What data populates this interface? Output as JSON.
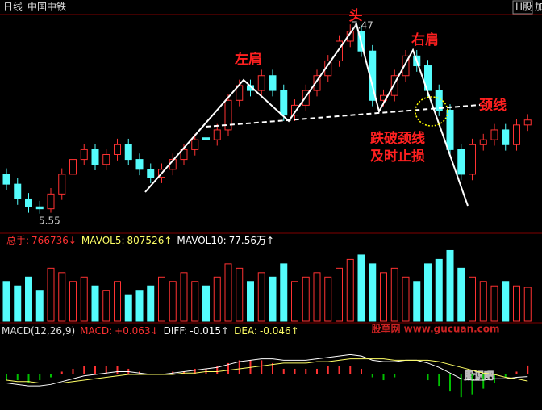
{
  "chart_data": [
    {
      "type": "candlestick",
      "period": "日线",
      "title": "中国中铁",
      "badges": [
        "H股",
        "加"
      ],
      "up_color": "#ff3232",
      "down_color": "#54fcfc",
      "open": [
        5.95,
        5.85,
        5.7,
        5.62,
        5.6,
        5.75,
        5.95,
        6.1,
        6.2,
        6.05,
        6.15,
        6.25,
        6.1,
        6.0,
        5.92,
        6.0,
        6.1,
        6.2,
        6.32,
        6.3,
        6.4,
        6.7,
        6.85,
        6.8,
        6.95,
        6.8,
        6.55,
        6.65,
        6.8,
        6.95,
        7.1,
        7.3,
        7.4,
        7.2,
        6.7,
        6.75,
        6.95,
        7.15,
        7.05,
        6.8,
        6.6,
        6.2,
        5.95,
        6.25,
        6.3,
        6.4,
        6.25,
        6.45
      ],
      "high": [
        6.01,
        5.91,
        5.76,
        5.68,
        5.81,
        6.01,
        6.16,
        6.26,
        6.26,
        6.21,
        6.31,
        6.31,
        6.16,
        6.06,
        6.06,
        6.16,
        6.26,
        6.36,
        6.38,
        6.46,
        6.76,
        6.91,
        6.91,
        7.01,
        7.01,
        6.86,
        6.71,
        6.86,
        7.01,
        7.16,
        7.36,
        7.47,
        7.46,
        7.26,
        6.81,
        7.01,
        7.21,
        7.21,
        7.11,
        6.86,
        6.66,
        6.26,
        6.31,
        6.36,
        6.46,
        6.46,
        6.51,
        6.56
      ],
      "low": [
        5.79,
        5.64,
        5.56,
        5.55,
        5.56,
        5.69,
        5.89,
        6.04,
        5.99,
        5.99,
        6.09,
        6.04,
        5.94,
        5.86,
        5.86,
        5.94,
        6.04,
        6.14,
        6.24,
        6.24,
        6.34,
        6.64,
        6.74,
        6.74,
        6.74,
        6.49,
        6.49,
        6.59,
        6.74,
        6.89,
        7.04,
        7.24,
        7.14,
        6.64,
        6.64,
        6.69,
        6.89,
        6.99,
        6.74,
        6.54,
        6.14,
        5.89,
        5.89,
        6.19,
        6.24,
        6.19,
        6.19,
        6.39
      ],
      "close": [
        5.85,
        5.7,
        5.62,
        5.6,
        5.75,
        5.95,
        6.1,
        6.2,
        6.05,
        6.15,
        6.25,
        6.1,
        6.0,
        5.92,
        6.0,
        6.1,
        6.2,
        6.3,
        6.3,
        6.4,
        6.7,
        6.85,
        6.8,
        6.95,
        6.8,
        6.55,
        6.65,
        6.8,
        6.95,
        7.1,
        7.3,
        7.4,
        7.2,
        6.7,
        6.75,
        6.95,
        7.15,
        7.05,
        6.8,
        6.6,
        6.2,
        5.95,
        6.25,
        6.3,
        6.4,
        6.25,
        6.45,
        6.5
      ],
      "ylim": [
        5.36,
        7.57
      ],
      "high_label": 7.47,
      "low_label": 5.55,
      "annotations": [
        "头",
        "左肩",
        "右肩",
        "颈线",
        "跌破颈线",
        "及时止损"
      ]
    },
    {
      "type": "bar",
      "legend": [
        {
          "name": "总手:",
          "value": 766736,
          "arrow": "↓",
          "color": "#ff3232"
        },
        {
          "name": "MAVOL5:",
          "value": 807526,
          "arrow": "↑",
          "color": "#ffff66"
        },
        {
          "name": "MAVOL10:",
          "value": 775600,
          "value_label": "77.56万",
          "arrow": "↑",
          "color": "#ffffff"
        }
      ],
      "values": [
        900000,
        800000,
        1000000,
        700000,
        1200000,
        1100000,
        900000,
        1000000,
        800000,
        700000,
        900000,
        600000,
        700000,
        800000,
        1000000,
        900000,
        1100000,
        900000,
        800000,
        1000000,
        1300000,
        1200000,
        900000,
        1100000,
        1000000,
        1300000,
        900000,
        1000000,
        1100000,
        1000000,
        1200000,
        1400000,
        1500000,
        1300000,
        1100000,
        1200000,
        1000000,
        900000,
        1300000,
        1400000,
        1600000,
        1200000,
        1000000,
        900000,
        800000,
        900000,
        800000,
        766736
      ],
      "ylim": [
        0,
        1700000
      ]
    },
    {
      "type": "macd",
      "title": "MACD(12,26,9)",
      "legend": [
        {
          "name": "MACD:",
          "value": 0.063,
          "value_label": "+0.063",
          "arrow": "↓",
          "color": "#ff3232"
        },
        {
          "name": "DIFF:",
          "value": -0.015,
          "arrow": "↑",
          "color": "#ffffff"
        },
        {
          "name": "DEA:",
          "value": -0.046,
          "arrow": "↑",
          "color": "#ffff66"
        }
      ],
      "values": [
        -0.04,
        -0.04,
        -0.06,
        -0.04,
        -0.02,
        0.02,
        0.04,
        0.06,
        0.06,
        0.06,
        0.06,
        0.04,
        0.02,
        0,
        0,
        0.02,
        0.02,
        0.04,
        0.04,
        0.06,
        0.08,
        0.1,
        0.1,
        0.1,
        0.08,
        0.04,
        0.04,
        0.04,
        0.04,
        0.06,
        0.06,
        0.06,
        0.04,
        -0.02,
        -0.04,
        -0.02,
        0,
        0,
        -0.04,
        -0.08,
        -0.12,
        -0.16,
        -0.14,
        -0.1,
        -0.06,
        -0.02,
        0.02,
        0.063
      ],
      "diff": [
        -0.06,
        -0.07,
        -0.08,
        -0.08,
        -0.07,
        -0.05,
        -0.03,
        -0.01,
        0.0,
        0.01,
        0.02,
        0.02,
        0.01,
        0.0,
        0.0,
        0.01,
        0.02,
        0.03,
        0.04,
        0.05,
        0.07,
        0.09,
        0.1,
        0.11,
        0.11,
        0.1,
        0.1,
        0.1,
        0.11,
        0.12,
        0.13,
        0.14,
        0.13,
        0.1,
        0.09,
        0.09,
        0.1,
        0.1,
        0.08,
        0.05,
        0.01,
        -0.03,
        -0.04,
        -0.04,
        -0.03,
        -0.03,
        -0.02,
        -0.015
      ],
      "dea": [
        -0.04,
        -0.05,
        -0.05,
        -0.06,
        -0.06,
        -0.06,
        -0.05,
        -0.04,
        -0.03,
        -0.02,
        -0.01,
        0.0,
        0.0,
        0.0,
        0.0,
        0.0,
        0.01,
        0.01,
        0.02,
        0.02,
        0.03,
        0.04,
        0.05,
        0.06,
        0.07,
        0.08,
        0.08,
        0.08,
        0.09,
        0.09,
        0.1,
        0.11,
        0.11,
        0.11,
        0.11,
        0.1,
        0.1,
        0.1,
        0.1,
        0.09,
        0.07,
        0.05,
        0.03,
        0.01,
        0.0,
        -0.02,
        -0.03,
        -0.046
      ],
      "ylim": [
        -0.25,
        0.25
      ]
    }
  ],
  "watermarks": [
    "股草网 www.gucuan.com",
    "股识吧"
  ]
}
